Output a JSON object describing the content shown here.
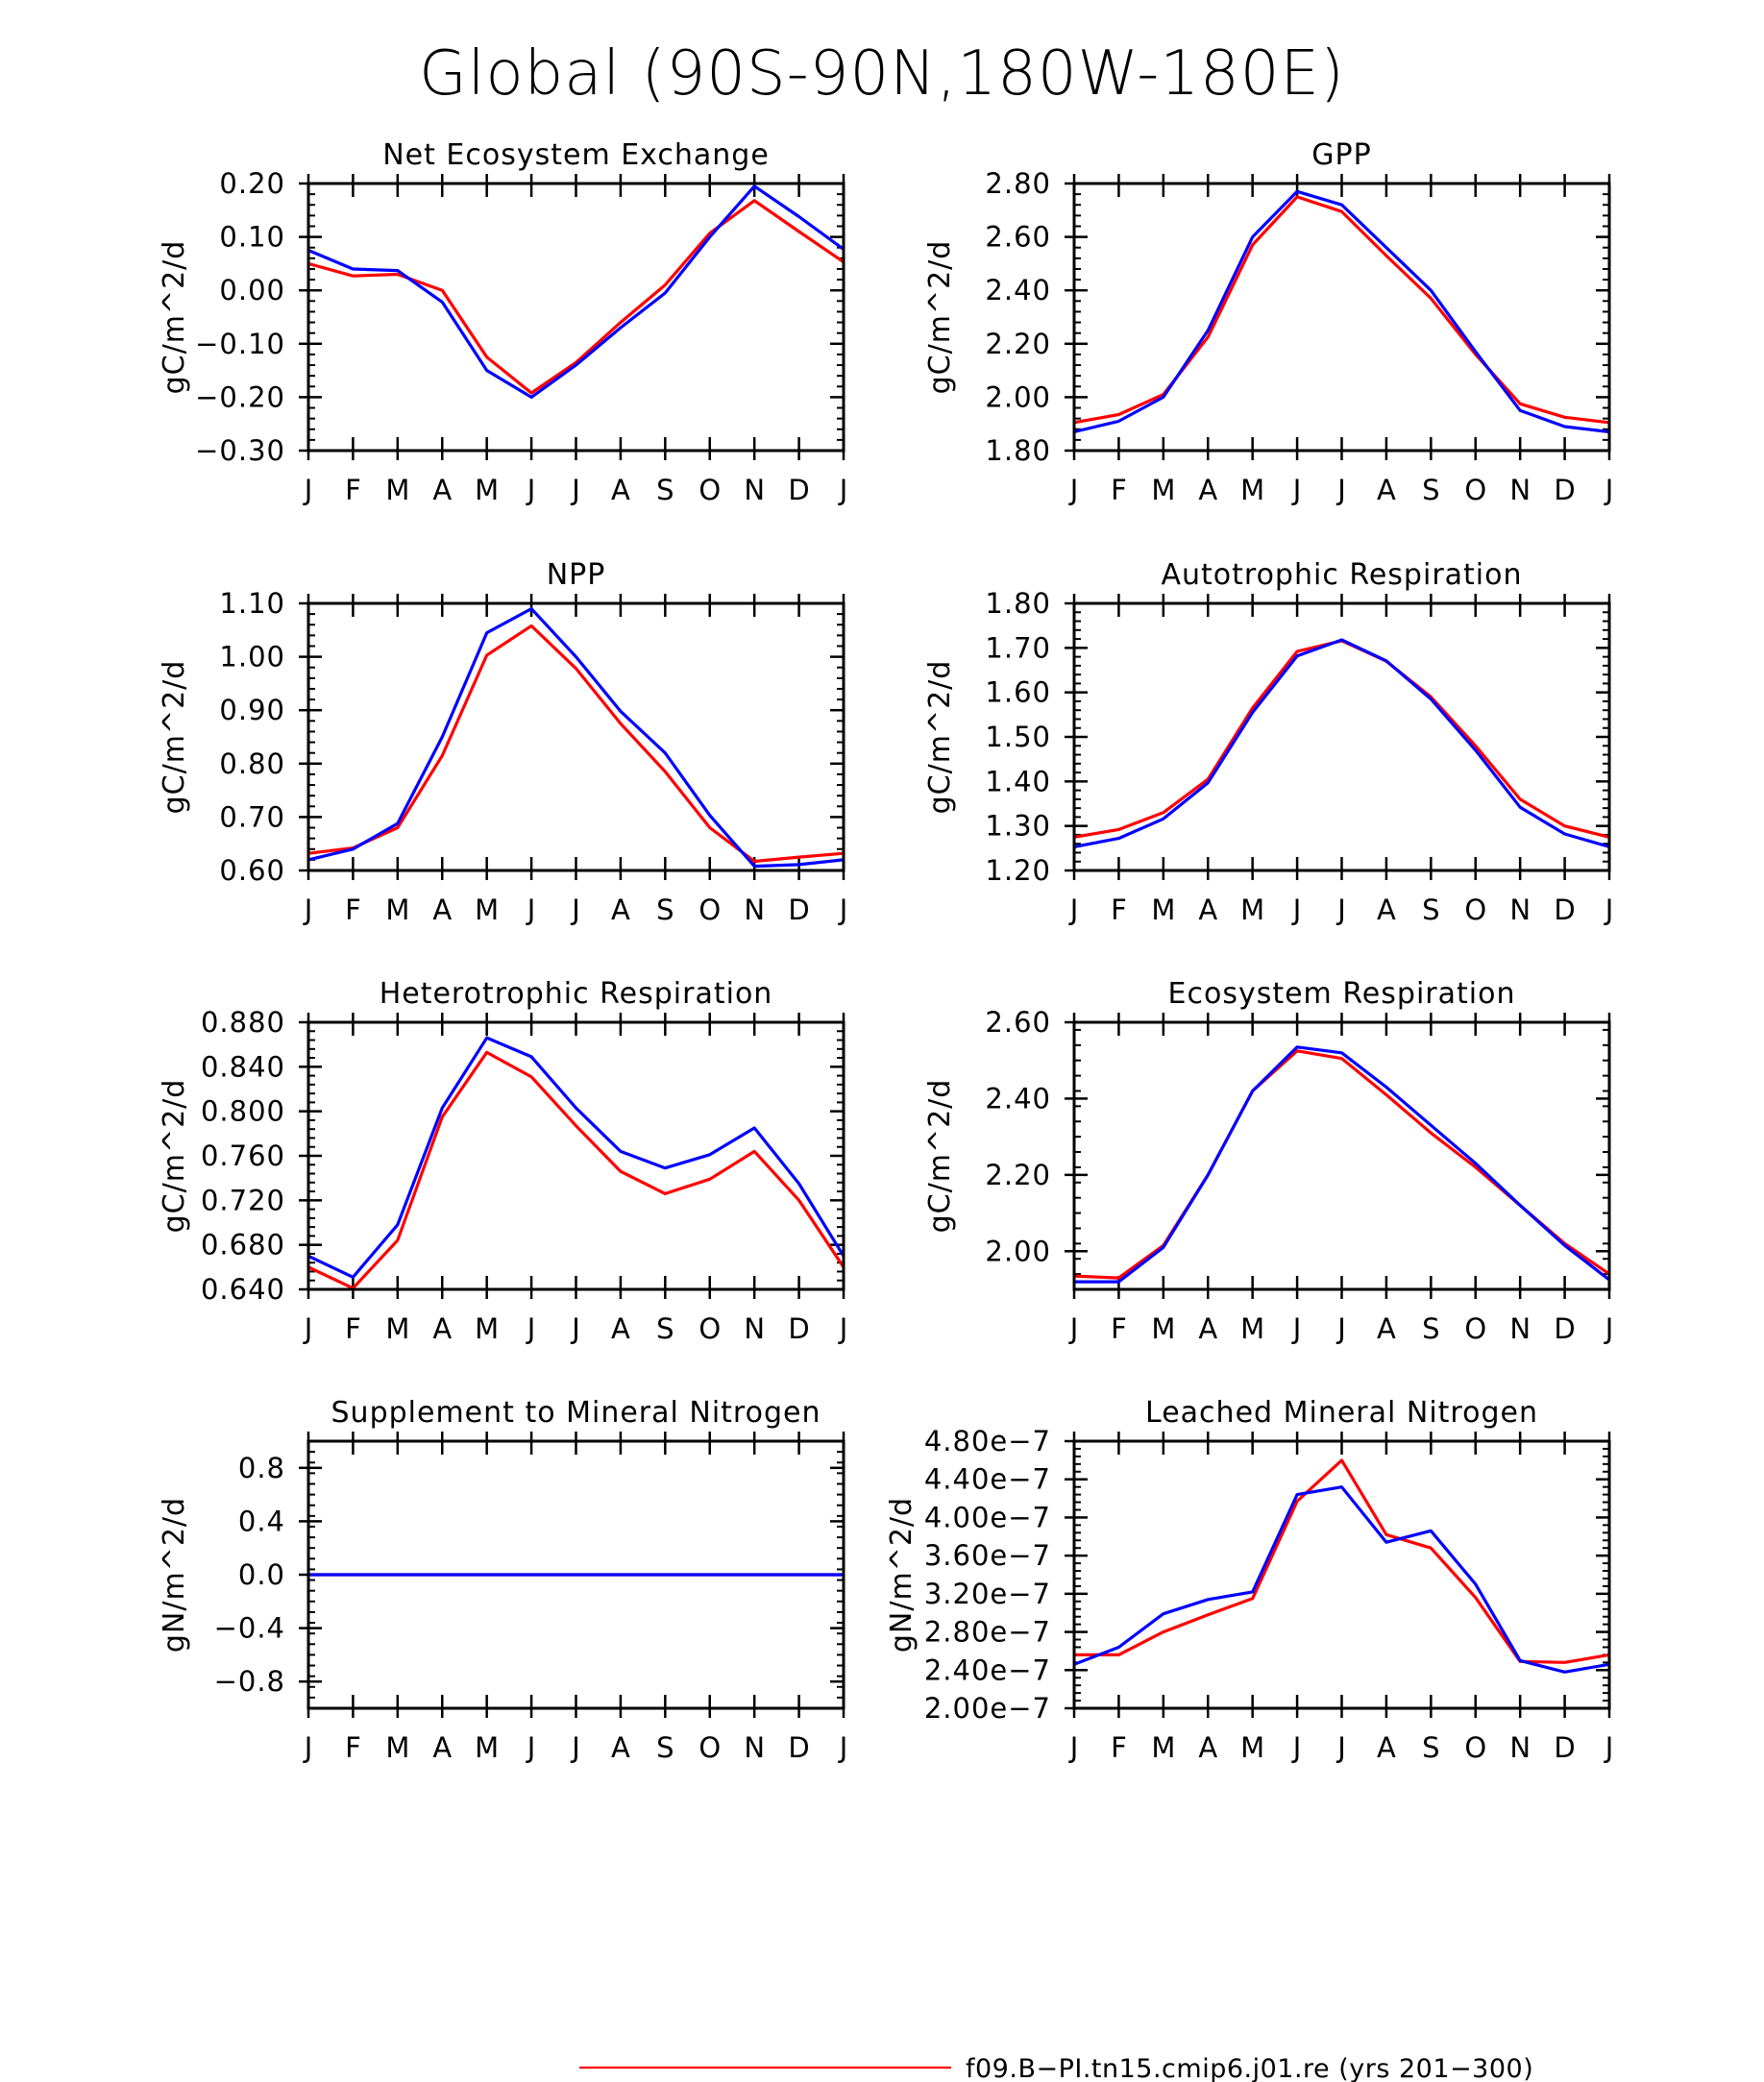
{
  "title": "Global (90S-90N,180W-180E)",
  "months": [
    "J",
    "F",
    "M",
    "A",
    "M",
    "J",
    "J",
    "A",
    "S",
    "O",
    "N",
    "D",
    "J"
  ],
  "legend": [
    {
      "label": "f09.B-PI.tn15.cmip6.j01.re (yrs 201-300)",
      "color": "#ff0000"
    }
  ],
  "series_colors": {
    "red": "#ff0000",
    "blue": "#0000ff"
  },
  "chart_data": [
    {
      "type": "line",
      "title": "Net Ecosystem Exchange",
      "ylabel": "gC/m^2/d",
      "ylim": [
        -0.3,
        0.2
      ],
      "yticks": [
        -0.3,
        -0.2,
        -0.1,
        0.0,
        0.1,
        0.2
      ],
      "ytick_labels": [
        "-0.30",
        "-0.20",
        "-0.10",
        "0.00",
        "0.10",
        "0.20"
      ],
      "x": [
        "J",
        "F",
        "M",
        "A",
        "M",
        "J",
        "J",
        "A",
        "S",
        "O",
        "N",
        "D",
        "J"
      ],
      "series": [
        {
          "color": "#ff0000",
          "values": [
            0.05,
            0.027,
            0.03,
            0.0,
            -0.125,
            -0.192,
            -0.135,
            -0.06,
            0.01,
            0.107,
            0.168,
            0.11,
            0.053
          ]
        },
        {
          "color": "#0000ff",
          "values": [
            0.075,
            0.04,
            0.037,
            -0.022,
            -0.15,
            -0.2,
            -0.14,
            -0.07,
            -0.005,
            0.1,
            0.195,
            0.138,
            0.077
          ]
        }
      ]
    },
    {
      "type": "line",
      "title": "GPP",
      "ylabel": "gC/m^2/d",
      "ylim": [
        1.8,
        2.8
      ],
      "yticks": [
        1.8,
        2.0,
        2.2,
        2.4,
        2.6,
        2.8
      ],
      "ytick_labels": [
        "1.80",
        "2.00",
        "2.20",
        "2.40",
        "2.60",
        "2.80"
      ],
      "x": [
        "J",
        "F",
        "M",
        "A",
        "M",
        "J",
        "J",
        "A",
        "S",
        "O",
        "N",
        "D",
        "J"
      ],
      "series": [
        {
          "color": "#ff0000",
          "values": [
            1.905,
            1.935,
            2.01,
            2.225,
            2.57,
            2.75,
            2.695,
            2.53,
            2.37,
            2.16,
            1.975,
            1.925,
            1.905
          ]
        },
        {
          "color": "#0000ff",
          "values": [
            1.87,
            1.91,
            2.0,
            2.25,
            2.6,
            2.77,
            2.72,
            2.56,
            2.4,
            2.17,
            1.95,
            1.89,
            1.87
          ]
        }
      ]
    },
    {
      "type": "line",
      "title": "NPP",
      "ylabel": "gC/m^2/d",
      "ylim": [
        0.6,
        1.1
      ],
      "yticks": [
        0.6,
        0.7,
        0.8,
        0.9,
        1.0,
        1.1
      ],
      "ytick_labels": [
        "0.60",
        "0.70",
        "0.80",
        "0.90",
        "1.00",
        "1.10"
      ],
      "x": [
        "J",
        "F",
        "M",
        "A",
        "M",
        "J",
        "J",
        "A",
        "S",
        "O",
        "N",
        "D",
        "J"
      ],
      "series": [
        {
          "color": "#ff0000",
          "values": [
            0.632,
            0.642,
            0.68,
            0.815,
            1.003,
            1.058,
            0.978,
            0.875,
            0.785,
            0.68,
            0.617,
            0.625,
            0.632
          ]
        },
        {
          "color": "#0000ff",
          "values": [
            0.62,
            0.64,
            0.688,
            0.85,
            1.045,
            1.09,
            1.0,
            0.898,
            0.82,
            0.703,
            0.608,
            0.611,
            0.62
          ]
        }
      ]
    },
    {
      "type": "line",
      "title": "Autotrophic Respiration",
      "ylabel": "gC/m^2/d",
      "ylim": [
        1.2,
        1.8
      ],
      "yticks": [
        1.2,
        1.3,
        1.4,
        1.5,
        1.6,
        1.7,
        1.8
      ],
      "ytick_labels": [
        "1.20",
        "1.30",
        "1.40",
        "1.50",
        "1.60",
        "1.70",
        "1.80"
      ],
      "x": [
        "J",
        "F",
        "M",
        "A",
        "M",
        "J",
        "J",
        "A",
        "S",
        "O",
        "N",
        "D",
        "J"
      ],
      "series": [
        {
          "color": "#ff0000",
          "values": [
            1.275,
            1.292,
            1.33,
            1.405,
            1.565,
            1.692,
            1.716,
            1.67,
            1.59,
            1.48,
            1.36,
            1.3,
            1.275
          ]
        },
        {
          "color": "#0000ff",
          "values": [
            1.253,
            1.272,
            1.316,
            1.397,
            1.555,
            1.682,
            1.718,
            1.671,
            1.585,
            1.47,
            1.342,
            1.282,
            1.253
          ]
        }
      ]
    },
    {
      "type": "line",
      "title": "Heterotrophic Respiration",
      "ylabel": "gC/m^2/d",
      "ylim": [
        0.64,
        0.88
      ],
      "yticks": [
        0.64,
        0.68,
        0.72,
        0.76,
        0.8,
        0.84,
        0.88
      ],
      "ytick_labels": [
        "0.640",
        "0.680",
        "0.720",
        "0.760",
        "0.800",
        "0.840",
        "0.880"
      ],
      "x": [
        "J",
        "F",
        "M",
        "A",
        "M",
        "J",
        "J",
        "A",
        "S",
        "O",
        "N",
        "D",
        "J"
      ],
      "series": [
        {
          "color": "#ff0000",
          "values": [
            0.66,
            0.641,
            0.684,
            0.795,
            0.853,
            0.831,
            0.787,
            0.746,
            0.726,
            0.739,
            0.764,
            0.72,
            0.66
          ]
        },
        {
          "color": "#0000ff",
          "values": [
            0.67,
            0.651,
            0.698,
            0.803,
            0.866,
            0.849,
            0.803,
            0.764,
            0.749,
            0.761,
            0.785,
            0.735,
            0.67
          ]
        }
      ]
    },
    {
      "type": "line",
      "title": "Ecosystem Respiration",
      "ylabel": "gC/m^2/d",
      "ylim": [
        1.9,
        2.6
      ],
      "yticks": [
        2.0,
        2.2,
        2.4,
        2.6
      ],
      "ytick_labels": [
        "2.00",
        "2.20",
        "2.40",
        "2.60"
      ],
      "x": [
        "J",
        "F",
        "M",
        "A",
        "M",
        "J",
        "J",
        "A",
        "S",
        "O",
        "N",
        "D",
        "J"
      ],
      "series": [
        {
          "color": "#ff0000",
          "values": [
            1.935,
            1.93,
            2.015,
            2.2,
            2.42,
            2.525,
            2.505,
            2.41,
            2.31,
            2.22,
            2.12,
            2.02,
            1.94
          ]
        },
        {
          "color": "#0000ff",
          "values": [
            1.92,
            1.92,
            2.01,
            2.2,
            2.42,
            2.535,
            2.52,
            2.43,
            2.33,
            2.23,
            2.12,
            2.015,
            1.925
          ]
        }
      ]
    },
    {
      "type": "line",
      "title": "Supplement to Mineral Nitrogen",
      "ylabel": "gN/m^2/d",
      "ylim": [
        -1.0,
        1.0
      ],
      "yticks": [
        -0.8,
        -0.4,
        0.0,
        0.4,
        0.8
      ],
      "ytick_labels": [
        "-0.8",
        "-0.4",
        "0.0",
        "0.4",
        "0.8"
      ],
      "x": [
        "J",
        "F",
        "M",
        "A",
        "M",
        "J",
        "J",
        "A",
        "S",
        "O",
        "N",
        "D",
        "J"
      ],
      "series": [
        {
          "color": "#ff0000",
          "values": [
            0,
            0,
            0,
            0,
            0,
            0,
            0,
            0,
            0,
            0,
            0,
            0,
            0
          ]
        },
        {
          "color": "#0000ff",
          "values": [
            0,
            0,
            0,
            0,
            0,
            0,
            0,
            0,
            0,
            0,
            0,
            0,
            0
          ]
        }
      ]
    },
    {
      "type": "line",
      "title": "Leached Mineral Nitrogen",
      "ylabel": "gN/m^2/d",
      "ylim": [
        2e-07,
        4.8e-07
      ],
      "yticks": [
        2e-07,
        2.4e-07,
        2.8e-07,
        3.2e-07,
        3.6e-07,
        4e-07,
        4.4e-07,
        4.8e-07
      ],
      "ytick_labels": [
        "2.00e-7",
        "2.40e-7",
        "2.80e-7",
        "3.20e-7",
        "3.60e-7",
        "4.00e-7",
        "4.40e-7",
        "4.80e-7"
      ],
      "x": [
        "J",
        "F",
        "M",
        "A",
        "M",
        "J",
        "J",
        "A",
        "S",
        "O",
        "N",
        "D",
        "J"
      ],
      "series": [
        {
          "color": "#ff0000",
          "values": [
            2.56e-07,
            2.56e-07,
            2.8e-07,
            2.98e-07,
            3.15e-07,
            4.17e-07,
            4.6e-07,
            3.82e-07,
            3.68e-07,
            3.16e-07,
            2.49e-07,
            2.48e-07,
            2.56e-07
          ]
        },
        {
          "color": "#0000ff",
          "values": [
            2.46e-07,
            2.64e-07,
            2.99e-07,
            3.14e-07,
            3.22e-07,
            4.24e-07,
            4.32e-07,
            3.74e-07,
            3.86e-07,
            3.3e-07,
            2.5e-07,
            2.38e-07,
            2.46e-07
          ]
        }
      ]
    }
  ]
}
